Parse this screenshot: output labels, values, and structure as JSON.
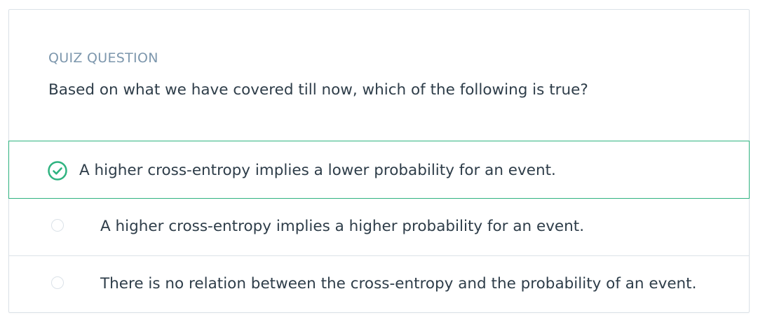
{
  "quiz": {
    "kicker": "QUIZ QUESTION",
    "question": "Based on what we have covered till now, which of the following is true?",
    "options": [
      {
        "label": "A higher cross-entropy implies a lower probability for an event.",
        "selected": true,
        "icon": "check-circle-icon"
      },
      {
        "label": "A higher cross-entropy implies a higher probability for an event.",
        "selected": false,
        "icon": "radio-empty-icon"
      },
      {
        "label": "There is no relation between the cross-entropy and the probability of an event.",
        "selected": false,
        "icon": "radio-empty-icon"
      }
    ]
  },
  "colors": {
    "accent": "#2fb380",
    "kicker": "#7d97ad",
    "text": "#2e3d49",
    "border": "#dbe2e8"
  }
}
